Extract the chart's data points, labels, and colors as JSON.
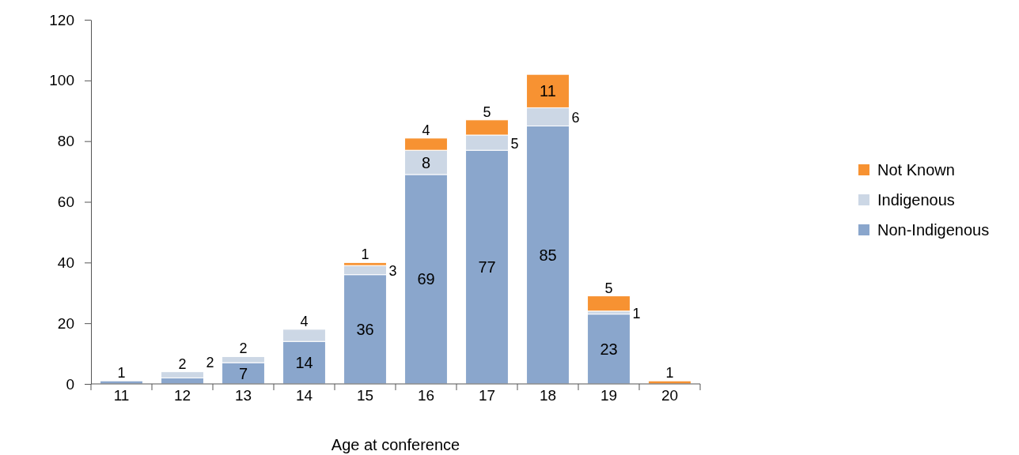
{
  "chart_data": {
    "type": "bar",
    "stacked": true,
    "xlabel": "Age at conference",
    "categories": [
      "11",
      "12",
      "13",
      "14",
      "15",
      "16",
      "17",
      "18",
      "19",
      "20"
    ],
    "series": [
      {
        "name": "Non-Indigenous",
        "color": "#8aa6cc",
        "values": [
          1,
          2,
          7,
          14,
          36,
          69,
          77,
          85,
          23,
          null
        ]
      },
      {
        "name": "Indigenous",
        "color": "#ccd7e5",
        "values": [
          null,
          2,
          2,
          4,
          3,
          8,
          5,
          6,
          1,
          null
        ]
      },
      {
        "name": "Not Known",
        "color": "#f79232",
        "values": [
          null,
          null,
          null,
          null,
          1,
          4,
          5,
          11,
          5,
          1
        ]
      }
    ],
    "ylim": [
      0,
      120
    ],
    "yticks": [
      0,
      20,
      40,
      60,
      80,
      100,
      120
    ],
    "grid": false,
    "legend": "right",
    "data_labels": true
  }
}
